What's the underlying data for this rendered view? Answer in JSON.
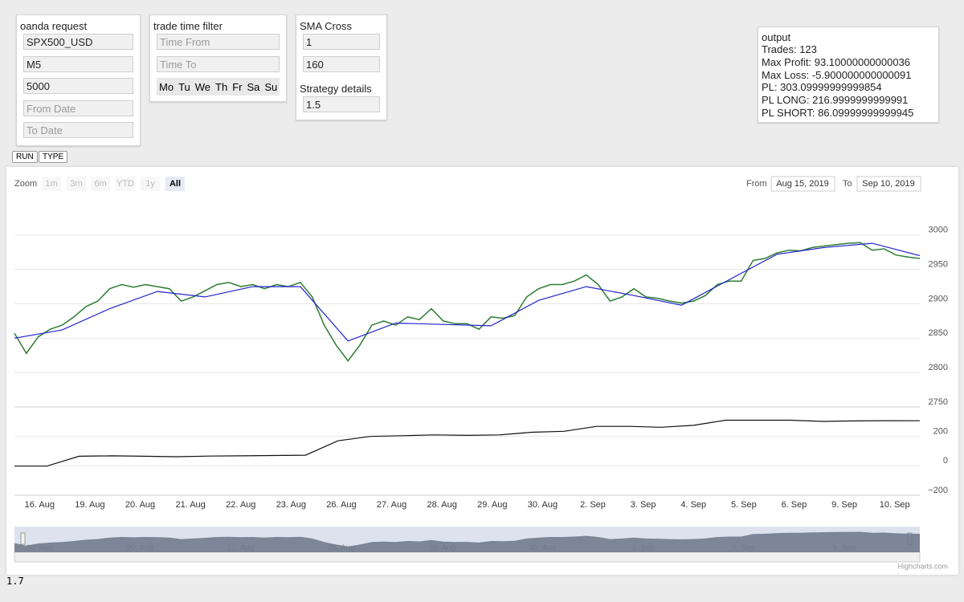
{
  "panels": {
    "oanda_request": {
      "title": "oanda request",
      "fields": [
        "SPX500_USD",
        "M5",
        "5000"
      ],
      "placeholders": [
        "From Date",
        "To Date"
      ]
    },
    "trade_time_filter": {
      "title": "trade time filter",
      "placeholders": [
        "Time From",
        "Time To"
      ],
      "days": [
        "Mo",
        "Tu",
        "We",
        "Th",
        "Fr",
        "Sa",
        "Su"
      ]
    },
    "sma_cross": {
      "title": "SMA Cross",
      "fields": [
        "1",
        "160"
      ]
    },
    "strategy_details": {
      "title": "Strategy details",
      "fields": [
        "1.5"
      ]
    },
    "output": {
      "title": "output",
      "lines": [
        "Trades: 123",
        "Max Profit: 93.10000000000036",
        "Max Loss: -5.900000000000091",
        "PL: 303.09999999999854",
        "PL LONG: 216.9999999999991",
        "PL SHORT: 86.09999999999945"
      ]
    }
  },
  "buttons": [
    "RUN",
    "TYPE"
  ],
  "chart": {
    "type": "line",
    "zoom_label": "Zoom",
    "zoom_buttons": [
      "1m",
      "3m",
      "6m",
      "YTD",
      "1y",
      "All"
    ],
    "active_zoom_index": 5,
    "range_from_label": "From",
    "range_from": "Aug 15, 2019",
    "range_to_label": "To",
    "range_to": "Sep 10, 2019",
    "categories": [
      "16. Aug",
      "19. Aug",
      "20. Aug",
      "21. Aug",
      "22. Aug",
      "23. Aug",
      "26. Aug",
      "27. Aug",
      "28. Aug",
      "29. Aug",
      "30. Aug",
      "2. Sep",
      "3. Sep",
      "4. Sep",
      "5. Sep",
      "6. Sep",
      "9. Sep",
      "10. Sep"
    ],
    "panes": [
      {
        "ylim": [
          2750,
          3050
        ],
        "yticks": [
          2750,
          2800,
          2850,
          2900,
          2950,
          3000
        ],
        "series": [
          {
            "color": "#2e7d32",
            "values": [
              2857,
              2828,
              2852,
              2863,
              2869,
              2881,
              2896,
              2904,
              2922,
              2928,
              2924,
              2928,
              2925,
              2922,
              2904,
              2910,
              2919,
              2928,
              2931,
              2925,
              2928,
              2922,
              2928,
              2925,
              2931,
              2910,
              2869,
              2840,
              2817,
              2840,
              2869,
              2875,
              2869,
              2881,
              2877,
              2893,
              2875,
              2871,
              2871,
              2863,
              2881,
              2879,
              2883,
              2910,
              2922,
              2928,
              2928,
              2933,
              2942,
              2928,
              2904,
              2910,
              2922,
              2910,
              2908,
              2904,
              2901,
              2904,
              2912,
              2928,
              2933,
              2933,
              2963,
              2966,
              2974,
              2978,
              2977,
              2982,
              2984,
              2986,
              2988,
              2989,
              2978,
              2980,
              2971,
              2968,
              2966
            ]
          },
          {
            "color": "#2222cc",
            "values": [
              2850,
              2862,
              2893,
              2918,
              2910,
              2925,
              2925,
              2846,
              2872,
              2870,
              2868,
              2905,
              2925,
              2912,
              2898,
              2935,
              2972,
              2982,
              2988,
              2970
            ]
          }
        ]
      },
      {
        "ylim": [
          -200,
          400
        ],
        "yticks": [
          {
            "value": -200,
            "label": "−200"
          },
          0,
          200
        ],
        "series": [
          {
            "color": "#111111",
            "values": [
              -2,
              -2,
              65,
              68,
              65,
              62,
              66,
              68,
              70,
              72,
              170,
              200,
              205,
              210,
              207,
              210,
              228,
              235,
              268,
              268,
              262,
              275,
              310,
              310,
              310,
              302,
              305,
              307,
              306
            ]
          }
        ]
      }
    ],
    "credit": "Highcharts.com"
  },
  "footer": "1.7"
}
